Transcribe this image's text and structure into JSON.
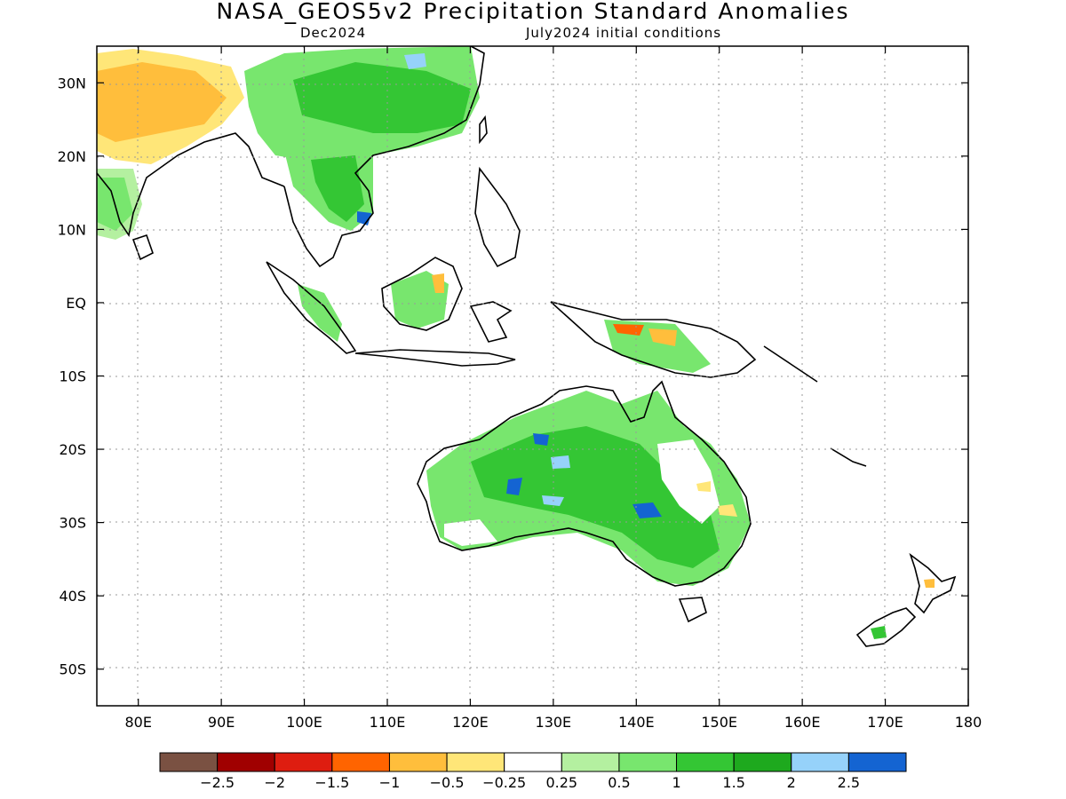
{
  "title": "NASA_GEOS5v2 Precipitation Standard Anomalies",
  "subtitle_left": "Dec2024",
  "subtitle_right": "July2024 initial conditions",
  "map": {
    "lon_range": [
      75,
      180
    ],
    "lat_range": [
      -55,
      35
    ],
    "lon_ticks": [
      "80E",
      "90E",
      "100E",
      "110E",
      "120E",
      "130E",
      "140E",
      "150E",
      "160E",
      "170E",
      "180"
    ],
    "lat_ticks": [
      "30N",
      "20N",
      "10N",
      "EQ",
      "10S",
      "20S",
      "30S",
      "40S",
      "50S"
    ],
    "grid": "dotted"
  },
  "colorbar": {
    "colors": [
      "#7a5142",
      "#a00000",
      "#de1d10",
      "#ff6400",
      "#ffbe3c",
      "#ffe678",
      "#ffffff",
      "#b4f0a0",
      "#78e66e",
      "#34c634",
      "#1ea91e",
      "#96d2fa",
      "#1464d2"
    ],
    "labels": [
      "-2.5",
      "-2",
      "-1.5",
      "-1",
      "-0.5",
      "-0.25",
      "0.25",
      "0.5",
      "1",
      "1.5",
      "2",
      "2.5"
    ]
  }
}
